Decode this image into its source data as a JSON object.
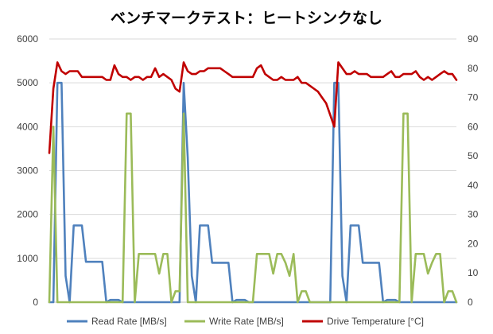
{
  "chart_data": {
    "type": "line",
    "title": "ベンチマークテスト：ヒートシンクなし",
    "xlabel": "",
    "ylabel": "",
    "ylim": [
      0,
      6000
    ],
    "y2lim": [
      0,
      90
    ],
    "yticks": [
      "0",
      "1000",
      "2000",
      "3000",
      "4000",
      "5000",
      "6000"
    ],
    "y2ticks": [
      "0",
      "10",
      "20",
      "30",
      "40",
      "50",
      "60",
      "70",
      "80",
      "90"
    ],
    "grid": true,
    "legend_position": "bottom",
    "x_points": 101,
    "series": [
      {
        "name": "Read Rate [MB/s]",
        "axis": "left",
        "color": "#4f81bd",
        "values": [
          0,
          0,
          5000,
          5000,
          600,
          0,
          1750,
          1750,
          1750,
          920,
          920,
          920,
          920,
          920,
          0,
          50,
          50,
          50,
          0,
          0,
          0,
          0,
          0,
          0,
          0,
          0,
          0,
          0,
          0,
          0,
          0,
          0,
          0,
          5000,
          3300,
          600,
          0,
          1750,
          1750,
          1750,
          900,
          900,
          900,
          900,
          900,
          0,
          50,
          50,
          50,
          0,
          0,
          0,
          0,
          0,
          0,
          0,
          0,
          0,
          0,
          0,
          0,
          0,
          0,
          0,
          0,
          0,
          0,
          0,
          0,
          0,
          5000,
          5000,
          600,
          0,
          1750,
          1750,
          1750,
          900,
          900,
          900,
          900,
          900,
          0,
          50,
          50,
          50,
          0,
          0,
          0,
          0,
          0,
          0,
          0,
          0,
          0,
          0,
          0,
          0,
          0,
          0,
          0
        ]
      },
      {
        "name": "Write Rate [MB/s]",
        "axis": "left",
        "color": "#9bbb59",
        "values": [
          0,
          4000,
          0,
          0,
          0,
          0,
          0,
          0,
          0,
          0,
          0,
          0,
          0,
          0,
          0,
          0,
          0,
          0,
          0,
          4300,
          4300,
          0,
          1100,
          1100,
          1100,
          1100,
          1100,
          650,
          1100,
          1100,
          0,
          250,
          250,
          4300,
          0,
          0,
          0,
          0,
          0,
          0,
          0,
          0,
          0,
          0,
          0,
          0,
          0,
          0,
          0,
          0,
          0,
          1100,
          1100,
          1100,
          1100,
          650,
          1100,
          1100,
          900,
          600,
          1100,
          0,
          250,
          250,
          0,
          0,
          0,
          0,
          0,
          0,
          0,
          0,
          0,
          0,
          0,
          0,
          0,
          0,
          0,
          0,
          0,
          0,
          0,
          0,
          0,
          0,
          0,
          4300,
          4300,
          0,
          1100,
          1100,
          1100,
          650,
          900,
          1100,
          1100,
          0,
          250,
          250,
          0
        ]
      },
      {
        "name": "Drive Temperature [°C]",
        "axis": "right",
        "color": "#c00000",
        "values": [
          51,
          73,
          82,
          79,
          78,
          79,
          79,
          79,
          77,
          77,
          77,
          77,
          77,
          77,
          76,
          76,
          81,
          78,
          77,
          77,
          76,
          77,
          77,
          76,
          77,
          77,
          80,
          77,
          78,
          77,
          76,
          73,
          72,
          82,
          79,
          78,
          78,
          79,
          79,
          80,
          80,
          80,
          80,
          79,
          78,
          77,
          77,
          77,
          77,
          77,
          77,
          80,
          81,
          78,
          77,
          76,
          76,
          77,
          76,
          76,
          76,
          77,
          75,
          75,
          74,
          73,
          72,
          70,
          68,
          64,
          60,
          82,
          80,
          78,
          78,
          79,
          78,
          78,
          78,
          77,
          77,
          77,
          77,
          78,
          79,
          77,
          77,
          78,
          78,
          78,
          79,
          77,
          76,
          77,
          76,
          77,
          78,
          79,
          78,
          78,
          76
        ]
      }
    ]
  }
}
